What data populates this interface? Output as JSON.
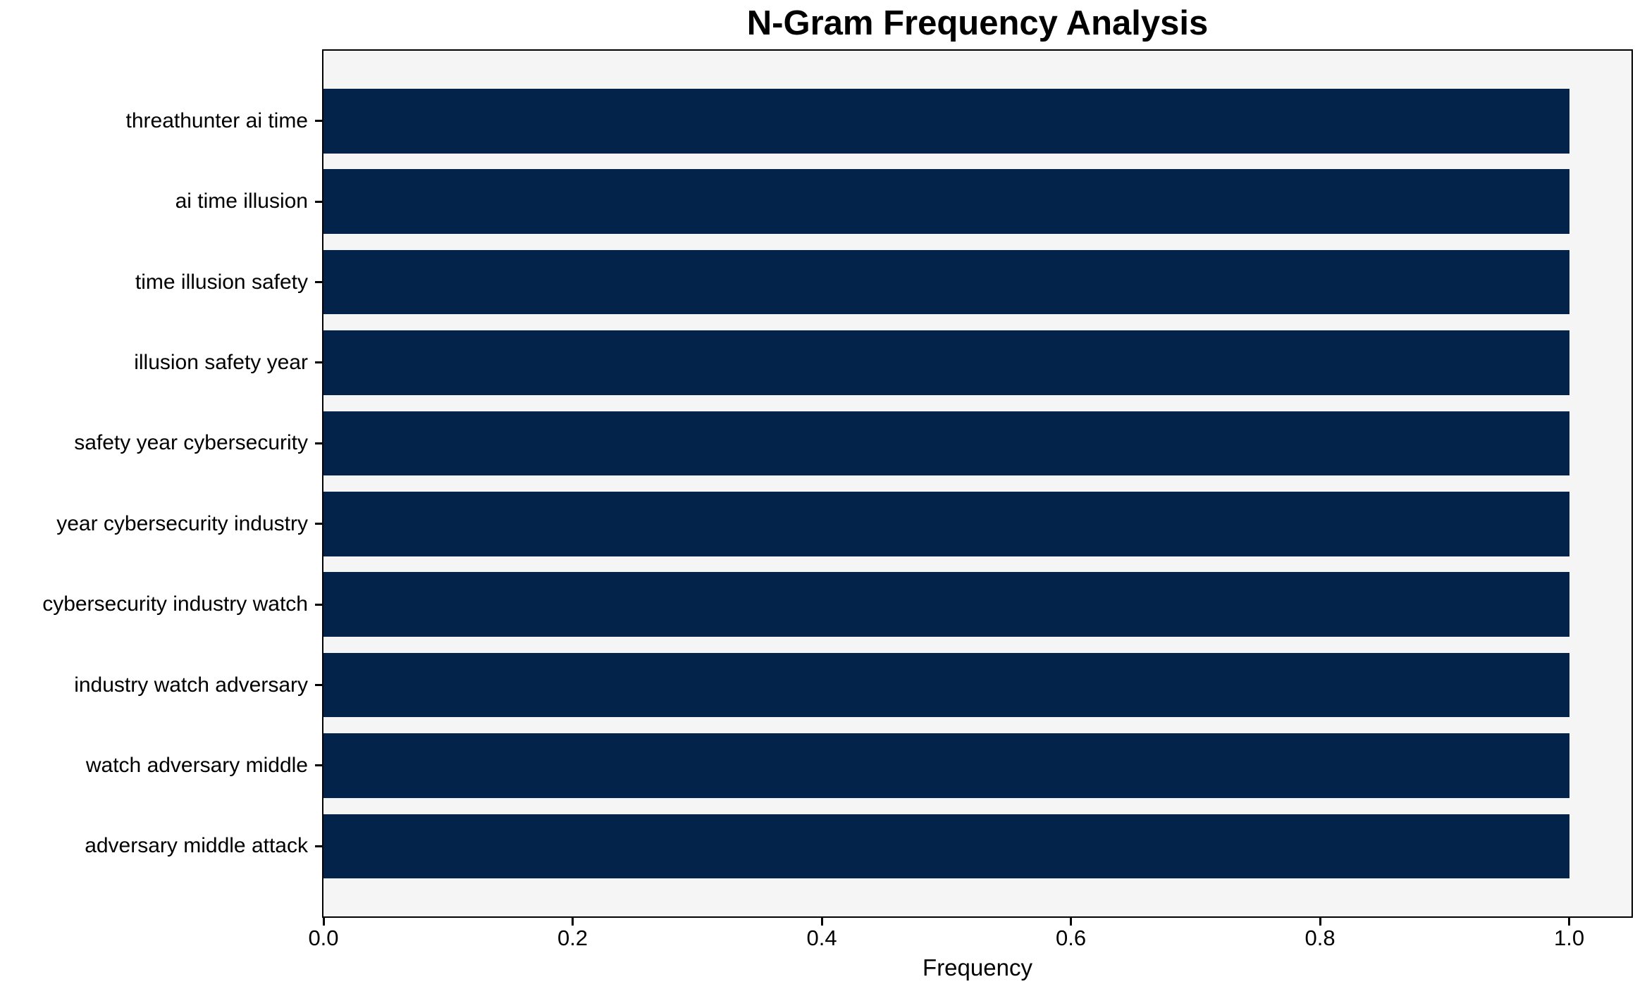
{
  "chart_data": {
    "type": "bar",
    "orientation": "horizontal",
    "title": "N-Gram Frequency Analysis",
    "xlabel": "Frequency",
    "categories": [
      "threathunter ai time",
      "ai time illusion",
      "time illusion safety",
      "illusion safety year",
      "safety year cybersecurity",
      "year cybersecurity industry",
      "cybersecurity industry watch",
      "industry watch adversary",
      "watch adversary middle",
      "adversary middle attack"
    ],
    "values": [
      1.0,
      1.0,
      1.0,
      1.0,
      1.0,
      1.0,
      1.0,
      1.0,
      1.0,
      1.0
    ],
    "x_tick_values": [
      0.0,
      0.2,
      0.4,
      0.6,
      0.8,
      1.0
    ],
    "x_tick_labels": [
      "0.0",
      "0.2",
      "0.4",
      "0.6",
      "0.8",
      "1.0"
    ],
    "xlim": [
      0,
      1.05
    ],
    "grid": false,
    "legend_position": "none",
    "colors": {
      "bar": "#04234a",
      "plot_bg": "#f5f5f5",
      "figure_bg": "#ffffff",
      "spine": "#000000",
      "text": "#000000"
    }
  }
}
